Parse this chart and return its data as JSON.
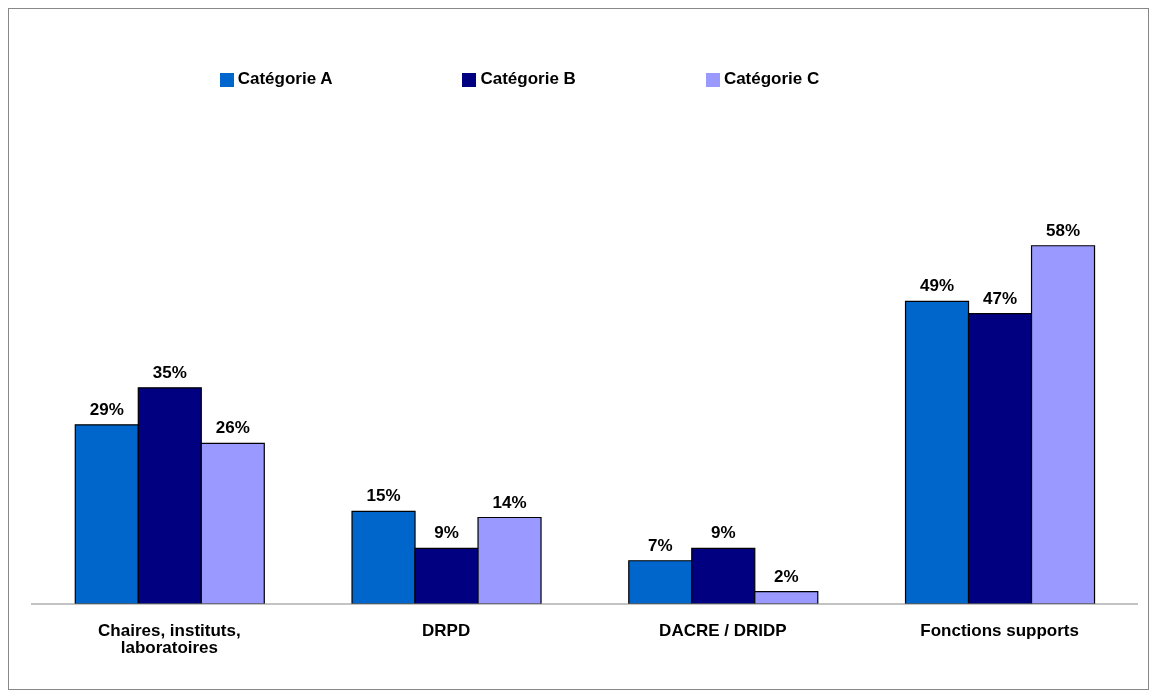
{
  "chart_data": {
    "type": "bar",
    "categories": [
      "Chaires, instituts, laboratoires",
      "DRPD",
      "DACRE / DRIDP",
      "Fonctions supports"
    ],
    "series": [
      {
        "name": "Catégorie A",
        "color": "#0066cc",
        "values": [
          29,
          15,
          7,
          49
        ],
        "value_labels": [
          "29%",
          "15%",
          "7%",
          "49%"
        ]
      },
      {
        "name": "Catégorie B",
        "color": "#000080",
        "values": [
          35,
          9,
          9,
          47
        ],
        "value_labels": [
          "35%",
          "9%",
          "9%",
          "47%"
        ]
      },
      {
        "name": "Catégorie C",
        "color": "#9999ff",
        "values": [
          26,
          14,
          2,
          58
        ],
        "value_labels": [
          "26%",
          "14%",
          "2%",
          "58%"
        ]
      }
    ],
    "legend": "top",
    "grid": false
  }
}
